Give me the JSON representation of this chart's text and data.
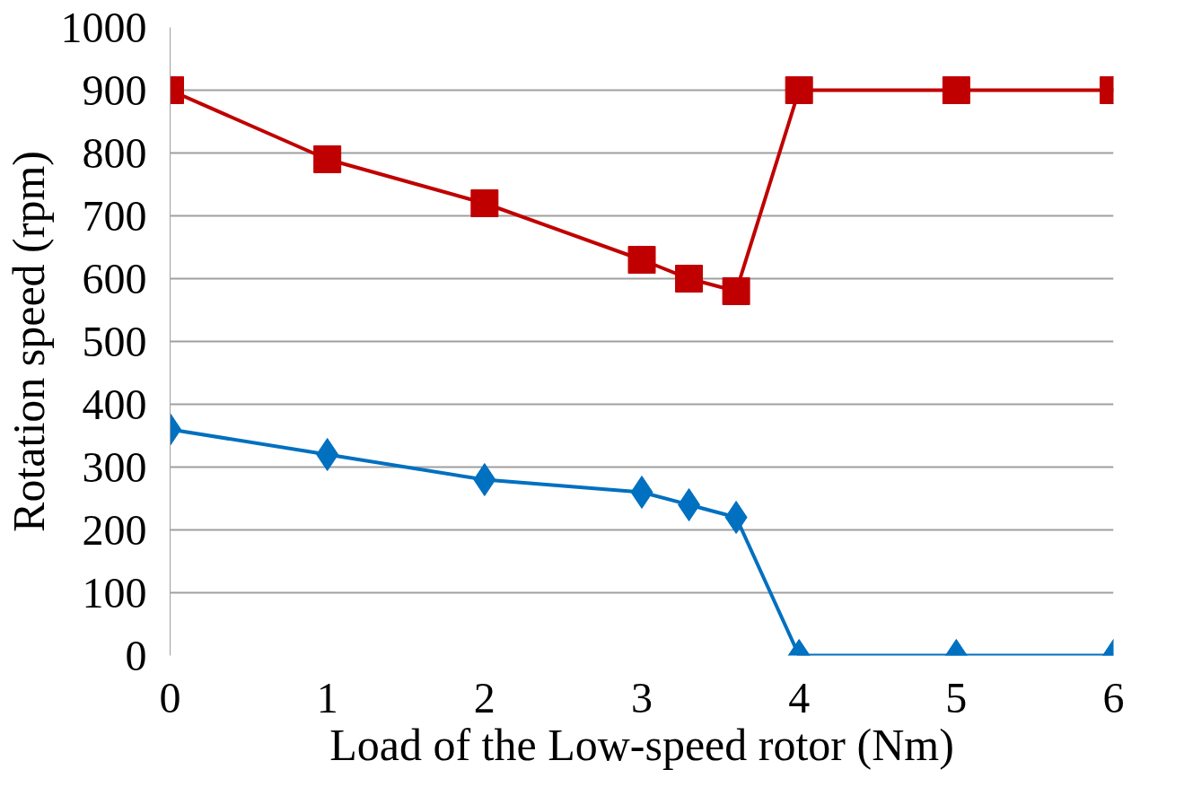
{
  "chart_data": {
    "type": "line",
    "xlabel": "Load of the Low-speed rotor (Nm)",
    "ylabel": "Rotation speed (rpm)",
    "x": [
      0,
      1,
      2,
      3,
      3.3,
      3.6,
      4,
      5,
      6
    ],
    "series": [
      {
        "color": "#c00000",
        "marker": "square",
        "values": [
          900,
          790,
          720,
          630,
          600,
          580,
          900,
          900,
          900
        ]
      },
      {
        "color": "#0070c0",
        "marker": "diamond",
        "values": [
          360,
          320,
          280,
          260,
          240,
          220,
          0,
          0,
          0
        ]
      }
    ],
    "xlim": [
      0,
      6
    ],
    "ylim": [
      0,
      1000
    ],
    "xticks": [
      0,
      1,
      2,
      3,
      4,
      5,
      6
    ],
    "yticks": [
      0,
      100,
      200,
      300,
      400,
      500,
      600,
      700,
      800,
      900,
      1000
    ],
    "grid": "y",
    "line_style": "solid"
  }
}
